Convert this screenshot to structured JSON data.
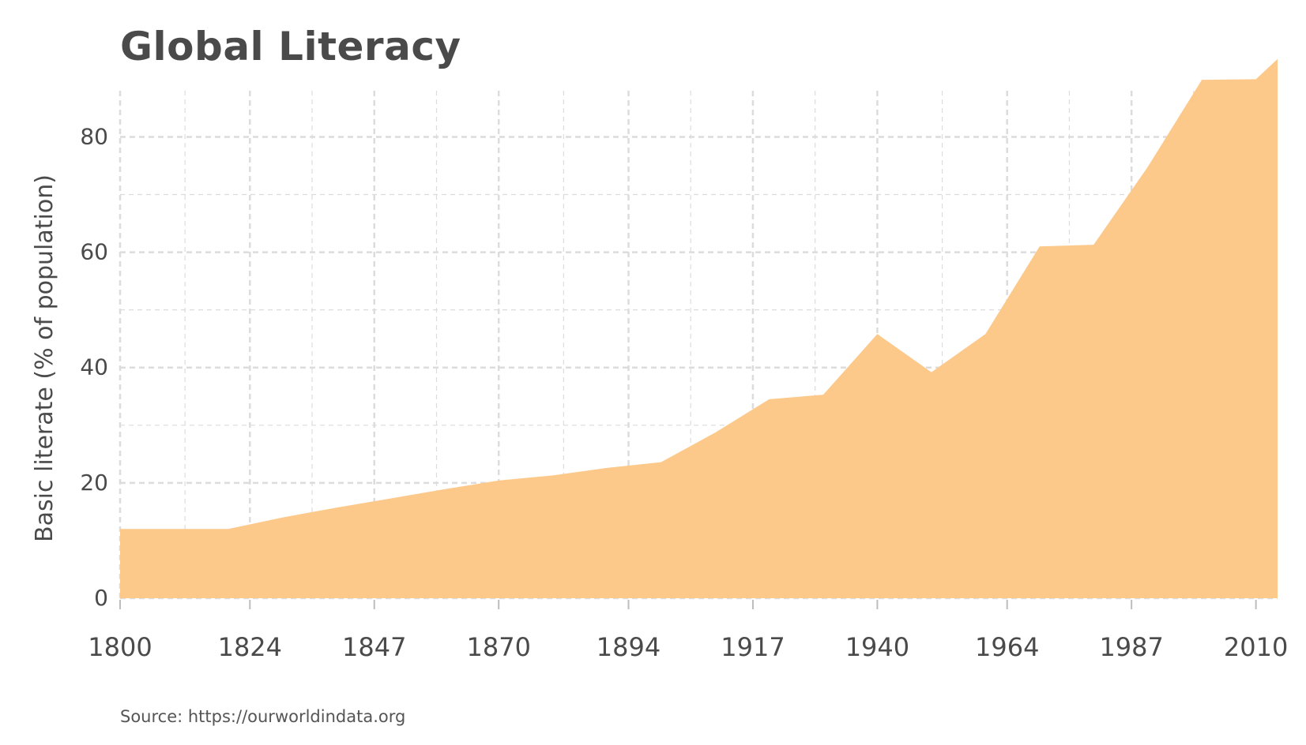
{
  "chart_data": {
    "type": "area",
    "title": "Global Literacy",
    "xlabel": "",
    "ylabel": "Basic literate (% of population)",
    "source": "Source: https://ourworldindata.org",
    "x": [
      1800,
      1810,
      1820,
      1830,
      1840,
      1850,
      1860,
      1870,
      1880,
      1890,
      1900,
      1910,
      1920,
      1930,
      1940,
      1950,
      1960,
      1970,
      1980,
      1990,
      2000,
      2010,
      2014
    ],
    "y": [
      12.0,
      12.0,
      12.0,
      14.0,
      15.7,
      17.3,
      18.9,
      20.4,
      21.3,
      22.6,
      23.6,
      28.7,
      34.5,
      35.3,
      45.8,
      39.2,
      45.8,
      61.0,
      61.3,
      74.8,
      89.9,
      90.0,
      93.5
    ],
    "x_ticks": [
      "1800",
      "1824",
      "1847",
      "1870",
      "1894",
      "1917",
      "1940",
      "1964",
      "1987",
      "2010"
    ],
    "y_ticks": [
      "0",
      "20",
      "40",
      "60",
      "80"
    ],
    "xlim": [
      1800,
      2014
    ],
    "ylim": [
      0,
      88
    ],
    "grid": true,
    "legend": "none",
    "fill_color": "#fcc98a",
    "grid_color": "#dcdcdc",
    "text_color": "#4a4a4a"
  }
}
